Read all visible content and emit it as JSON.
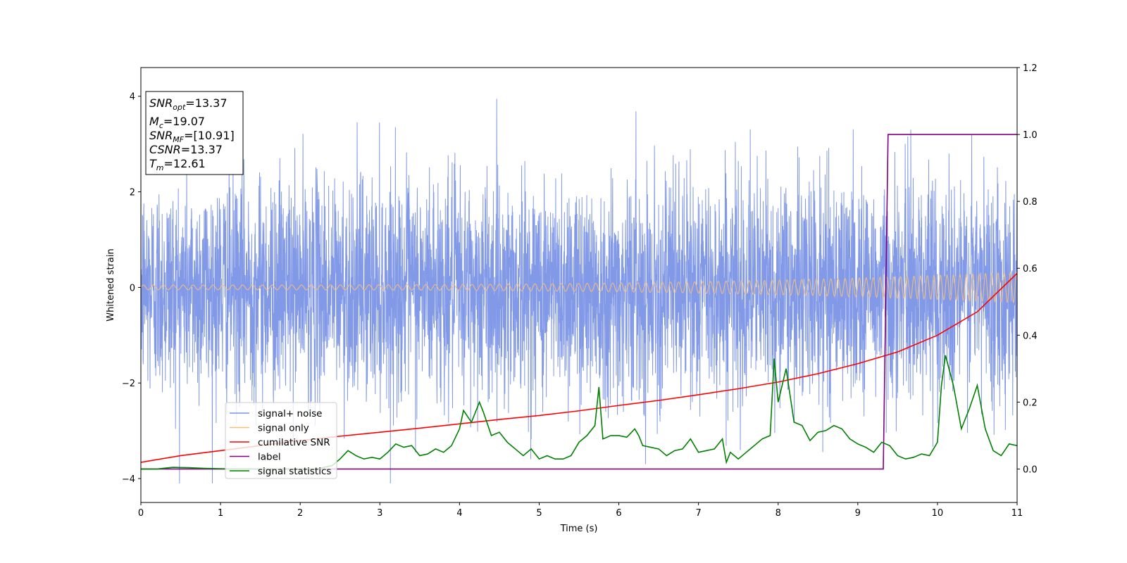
{
  "chart_data": {
    "type": "line",
    "xlabel": "Time (s)",
    "ylabel_left": "Whitened strain",
    "xlim": [
      0,
      11
    ],
    "ylim_left": [
      -4.5,
      4.6
    ],
    "ylim_right": [
      -0.1,
      1.2
    ],
    "x_ticks": [
      "0",
      "1",
      "2",
      "3",
      "4",
      "5",
      "6",
      "7",
      "8",
      "9",
      "10",
      "11"
    ],
    "y_ticks_left": [
      "−4",
      "−2",
      "0",
      "2",
      "4"
    ],
    "y_ticks_right": [
      "0.0",
      "0.2",
      "0.4",
      "0.6",
      "0.8",
      "1.0",
      "1.2"
    ],
    "grid": false,
    "legend_position": "lower-left",
    "annotation": {
      "line1": {
        "main": "SNR",
        "sub": "opt",
        "value": "=13.37"
      },
      "line2": {
        "main": "M",
        "sub": "c",
        "value": "=19.07"
      },
      "line3": {
        "main": "SNR",
        "sub": "MF",
        "value": "=[10.91]"
      },
      "line4": {
        "main": "CSNR",
        "sub": "",
        "value": "=13.37"
      },
      "line5": {
        "main": "T",
        "sub": "m",
        "value": "=12.61"
      }
    },
    "series": [
      {
        "name": "signal+ noise",
        "axis": "left",
        "color": "#7b93e6",
        "description_level": "white noise around 0 with std about 1.1, peaks to about ±4"
      },
      {
        "name": "signal only",
        "axis": "left",
        "color": "#f5c07a",
        "amplitude_start": 0.05,
        "amplitude_end": 0.32,
        "frequency_start_hz": 8,
        "frequency_end_hz": 13
      },
      {
        "name": "cumilative SNR",
        "axis": "right",
        "color": "#ff0000",
        "x": [
          0,
          0.5,
          1,
          1.5,
          2,
          2.5,
          3,
          3.5,
          4,
          4.5,
          5,
          5.5,
          6,
          6.5,
          7,
          7.5,
          8,
          8.5,
          9,
          9.5,
          10,
          10.5,
          11
        ],
        "y": [
          0.02,
          0.04,
          0.055,
          0.07,
          0.085,
          0.098,
          0.11,
          0.122,
          0.135,
          0.148,
          0.16,
          0.174,
          0.19,
          0.205,
          0.222,
          0.24,
          0.26,
          0.285,
          0.315,
          0.35,
          0.4,
          0.47,
          0.585
        ]
      },
      {
        "name": "label",
        "axis": "right",
        "color": "#800080",
        "x": [
          0,
          9.32,
          9.38,
          11
        ],
        "y": [
          0,
          0,
          1,
          1
        ]
      },
      {
        "name": "signal statistics",
        "axis": "right",
        "color": "#008000",
        "x": [
          0,
          0.2,
          0.4,
          0.6,
          0.8,
          1.0,
          1.2,
          1.4,
          1.6,
          1.8,
          2.0,
          2.2,
          2.4,
          2.5,
          2.6,
          2.7,
          2.8,
          2.9,
          3.0,
          3.1,
          3.2,
          3.3,
          3.4,
          3.5,
          3.6,
          3.7,
          3.8,
          3.9,
          4.0,
          4.05,
          4.15,
          4.25,
          4.3,
          4.4,
          4.5,
          4.6,
          4.7,
          4.8,
          4.9,
          5.0,
          5.1,
          5.2,
          5.3,
          5.4,
          5.5,
          5.6,
          5.7,
          5.75,
          5.8,
          5.9,
          6.0,
          6.1,
          6.2,
          6.25,
          6.3,
          6.4,
          6.5,
          6.6,
          6.7,
          6.8,
          6.9,
          7.0,
          7.1,
          7.2,
          7.3,
          7.35,
          7.4,
          7.5,
          7.6,
          7.7,
          7.8,
          7.9,
          7.95,
          8.0,
          8.1,
          8.2,
          8.3,
          8.4,
          8.5,
          8.6,
          8.7,
          8.8,
          8.9,
          9.0,
          9.1,
          9.2,
          9.3,
          9.4,
          9.5,
          9.6,
          9.7,
          9.8,
          9.9,
          10.0,
          10.05,
          10.1,
          10.2,
          10.3,
          10.4,
          10.5,
          10.6,
          10.7,
          10.8,
          10.9,
          11.0
        ],
        "y": [
          0.0,
          0.0,
          0.005,
          0.004,
          0.002,
          0.001,
          0.0,
          0.0,
          0.0,
          0.0,
          0.0,
          0.0,
          0.01,
          0.03,
          0.055,
          0.04,
          0.03,
          0.035,
          0.03,
          0.05,
          0.075,
          0.065,
          0.07,
          0.04,
          0.045,
          0.06,
          0.05,
          0.07,
          0.12,
          0.175,
          0.14,
          0.2,
          0.17,
          0.1,
          0.11,
          0.08,
          0.06,
          0.04,
          0.06,
          0.03,
          0.04,
          0.03,
          0.03,
          0.04,
          0.08,
          0.1,
          0.13,
          0.245,
          0.09,
          0.1,
          0.1,
          0.095,
          0.12,
          0.1,
          0.07,
          0.065,
          0.06,
          0.04,
          0.055,
          0.06,
          0.09,
          0.05,
          0.055,
          0.06,
          0.09,
          0.02,
          0.05,
          0.03,
          0.05,
          0.07,
          0.09,
          0.1,
          0.33,
          0.2,
          0.3,
          0.14,
          0.13,
          0.085,
          0.11,
          0.115,
          0.13,
          0.12,
          0.09,
          0.075,
          0.065,
          0.05,
          0.08,
          0.07,
          0.04,
          0.03,
          0.035,
          0.045,
          0.04,
          0.08,
          0.25,
          0.34,
          0.25,
          0.12,
          0.18,
          0.25,
          0.12,
          0.055,
          0.04,
          0.075,
          0.07
        ]
      }
    ]
  }
}
